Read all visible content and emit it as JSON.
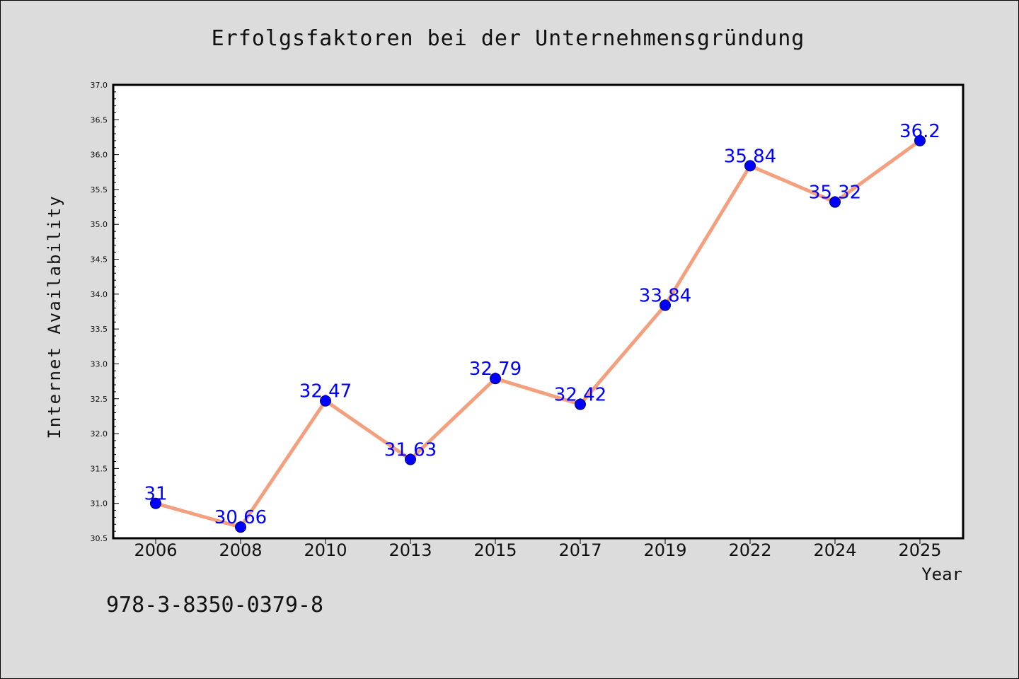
{
  "chart_data": {
    "type": "line",
    "title": "Erfolgsfaktoren bei der Unternehmensgründung",
    "xlabel": "Year",
    "ylabel": "Internet Availability",
    "categories": [
      "2006",
      "2008",
      "2010",
      "2013",
      "2015",
      "2017",
      "2019",
      "2022",
      "2024",
      "2025"
    ],
    "series": [
      {
        "values": [
          31,
          30.66,
          32.47,
          31.63,
          32.79,
          32.42,
          33.84,
          35.84,
          35.32,
          36.2
        ],
        "data_labels": [
          "31",
          "30.66",
          "32.47",
          "31.63",
          "32.79",
          "32.42",
          "33.84",
          "35.84",
          "35.32",
          "36.2"
        ],
        "line_color": "#f4a07f",
        "marker_color": "#0000ff",
        "label_color": "#0000ff"
      }
    ],
    "ylim": [
      30.5,
      37.0
    ],
    "y_ticks": [
      "30.5",
      "31.0",
      "31.5",
      "32.0",
      "32.5",
      "33.0",
      "33.5",
      "34.0",
      "34.5",
      "35.0",
      "35.5",
      "36.0",
      "36.5",
      "37.0"
    ],
    "grid": false,
    "legend": "none"
  },
  "footer": {
    "isbn": "978-3-8350-0379-8"
  },
  "colors": {
    "background": "#dcdcdc",
    "plot_background": "#ffffff"
  }
}
